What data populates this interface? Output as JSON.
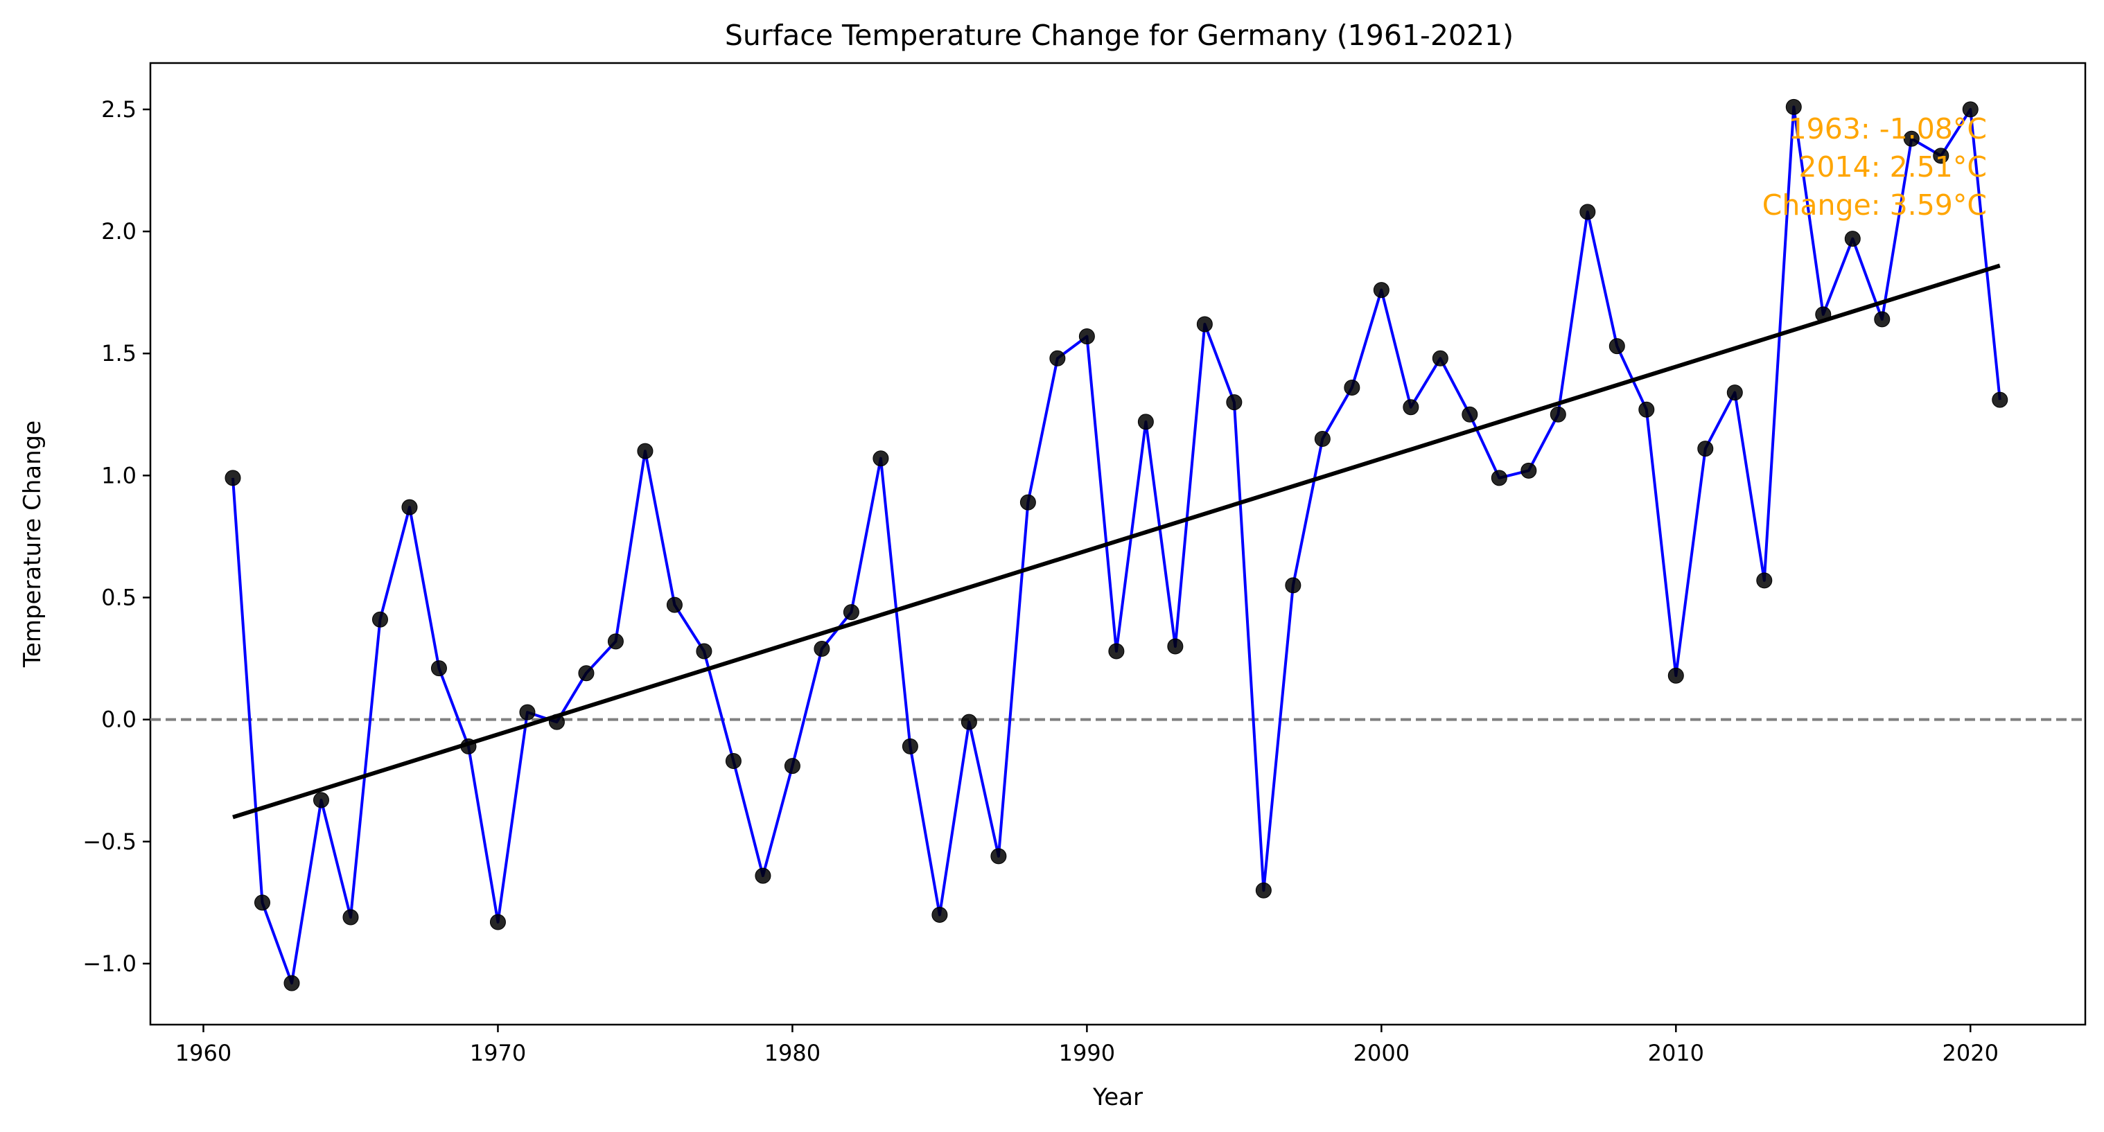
{
  "chart_data": {
    "type": "line",
    "title": "Surface Temperature Change for Germany (1961-2021)",
    "xlabel": "Year",
    "ylabel": "Temperature Change",
    "xlim": [
      1958.2,
      2023.9
    ],
    "ylim": [
      -1.25,
      2.69
    ],
    "x_ticks": [
      1960,
      1970,
      1980,
      1990,
      2000,
      2010,
      2020
    ],
    "y_ticks": [
      -1.0,
      -0.5,
      0.0,
      0.5,
      1.0,
      1.5,
      2.0,
      2.5
    ],
    "grid": false,
    "series": [
      {
        "x": [
          1961,
          1962,
          1963,
          1964,
          1965,
          1966,
          1967,
          1968,
          1969,
          1970,
          1971,
          1972,
          1973,
          1974,
          1975,
          1976,
          1977,
          1978,
          1979,
          1980,
          1981,
          1982,
          1983,
          1984,
          1985,
          1986,
          1987,
          1988,
          1989,
          1990,
          1991,
          1992,
          1993,
          1994,
          1995,
          1996,
          1997,
          1998,
          1999,
          2000,
          2001,
          2002,
          2003,
          2004,
          2005,
          2006,
          2007,
          2008,
          2009,
          2010,
          2011,
          2012,
          2013,
          2014,
          2015,
          2016,
          2017,
          2018,
          2019,
          2020,
          2021
        ],
        "y": [
          0.99,
          -0.75,
          -1.08,
          -0.33,
          -0.81,
          0.41,
          0.87,
          0.21,
          -0.11,
          -0.83,
          0.03,
          -0.01,
          0.19,
          0.32,
          1.1,
          0.47,
          0.28,
          -0.17,
          -0.64,
          -0.19,
          0.29,
          0.44,
          1.07,
          -0.11,
          -0.8,
          -0.01,
          -0.56,
          0.89,
          1.48,
          1.57,
          0.28,
          1.22,
          0.3,
          1.62,
          1.3,
          -0.7,
          0.55,
          1.15,
          1.36,
          1.76,
          1.28,
          1.48,
          1.25,
          0.99,
          1.02,
          1.25,
          2.08,
          1.53,
          1.27,
          0.18,
          1.11,
          1.34,
          0.57,
          2.51,
          1.66,
          1.97,
          1.64,
          2.38,
          2.31,
          2.5,
          1.31
        ],
        "color": "#0000ff",
        "marker_color": "#000000"
      }
    ],
    "trend_line": {
      "x": [
        1961,
        2021
      ],
      "y": [
        -0.4,
        1.86
      ],
      "color": "#000000"
    },
    "reference_line": {
      "y": 0,
      "style": "dashed",
      "color": "#808080"
    },
    "annotations": [
      "1963: -1.08°C",
      "2014: 2.51°C",
      "Change: 3.59°C"
    ],
    "annotation_color": "#ffa500",
    "annotation_placement": "top-right"
  }
}
